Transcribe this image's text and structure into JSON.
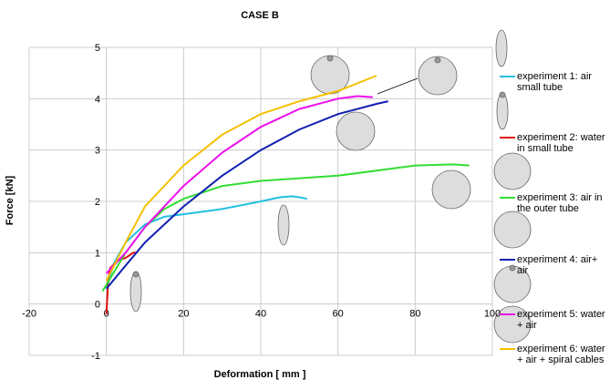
{
  "chart_data": {
    "type": "line",
    "title": "CASE B",
    "xlabel": "Deformation [ mm ]",
    "ylabel": "Force [kN]",
    "xlim": [
      -20,
      100
    ],
    "xticks": [
      -20,
      0,
      20,
      40,
      60,
      80,
      100
    ],
    "ylim": [
      -1,
      5
    ],
    "yticks": [
      -1,
      0,
      1,
      2,
      3,
      4,
      5
    ],
    "grid": true,
    "series": [
      {
        "name": "experiment 1: air small tube",
        "color": "#22c0e0",
        "x": [
          0,
          2,
          5,
          10,
          15,
          20,
          30,
          40,
          45,
          48,
          50,
          52
        ],
        "values": [
          0.3,
          0.8,
          1.2,
          1.55,
          1.7,
          1.75,
          1.85,
          2.0,
          2.08,
          2.1,
          2.08,
          2.05
        ]
      },
      {
        "name": "experiment 2: water in small tube",
        "color": "#e01010",
        "x": [
          0,
          0.5,
          1,
          3,
          5,
          7,
          8
        ],
        "values": [
          -0.2,
          0.5,
          0.7,
          0.85,
          0.9,
          1.0,
          1.0
        ]
      },
      {
        "name": "experiment 3: air in the outer tube",
        "color": "#33dd33",
        "x": [
          -1,
          5,
          10,
          15,
          20,
          30,
          40,
          50,
          60,
          70,
          80,
          90,
          94
        ],
        "values": [
          0.25,
          1.0,
          1.5,
          1.85,
          2.05,
          2.3,
          2.4,
          2.45,
          2.5,
          2.6,
          2.7,
          2.72,
          2.7
        ]
      },
      {
        "name": "experiment 4: air+ air",
        "color": "#1020b0",
        "x": [
          0,
          5,
          10,
          20,
          30,
          40,
          50,
          60,
          70,
          73
        ],
        "values": [
          0.3,
          0.75,
          1.2,
          1.9,
          2.5,
          3.0,
          3.4,
          3.7,
          3.9,
          3.95
        ]
      },
      {
        "name": "experiment 5: water + air",
        "color": "#ee10ee",
        "x": [
          0,
          5,
          10,
          20,
          30,
          40,
          50,
          60,
          65,
          69
        ],
        "values": [
          0.6,
          1.0,
          1.5,
          2.3,
          2.95,
          3.45,
          3.8,
          4.0,
          4.05,
          4.03
        ]
      },
      {
        "name": "experiment 6: water + air + spiral cables",
        "color": "#f5c000",
        "x": [
          0,
          5,
          10,
          20,
          30,
          40,
          50,
          60,
          70
        ],
        "values": [
          0.45,
          1.2,
          1.9,
          2.7,
          3.3,
          3.7,
          3.95,
          4.15,
          4.45
        ]
      }
    ]
  }
}
